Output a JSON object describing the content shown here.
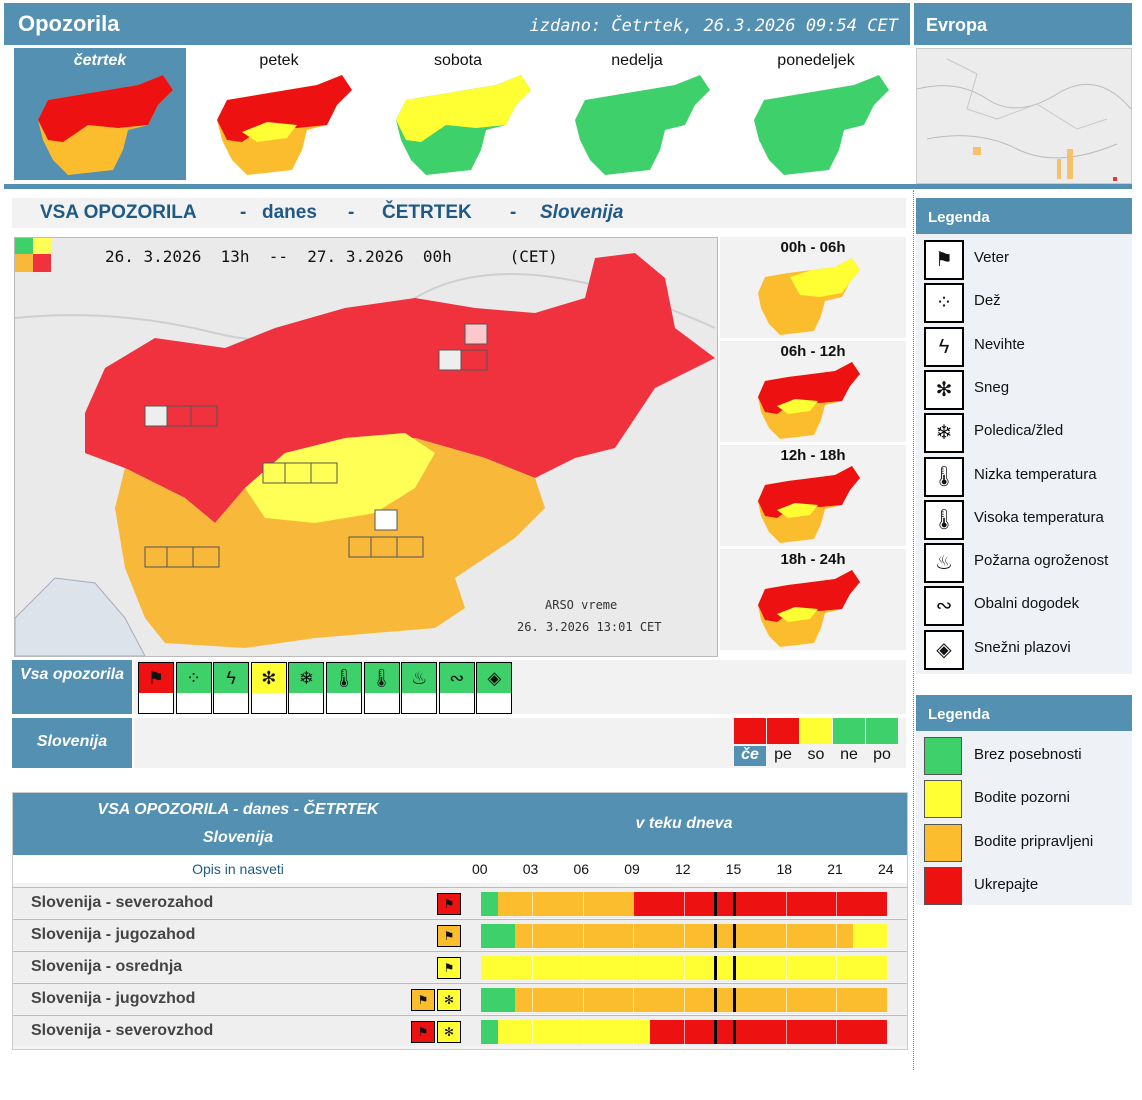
{
  "header": {
    "title": "Opozorila",
    "issued": "izdano: Četrtek, 26.3.2026 09:54 CET",
    "europe_title": "Evropa"
  },
  "days": [
    {
      "label": "četrtek",
      "selected": true
    },
    {
      "label": "petek",
      "selected": false
    },
    {
      "label": "sobota",
      "selected": false
    },
    {
      "label": "nedelja",
      "selected": false
    },
    {
      "label": "ponedeljek",
      "selected": false
    }
  ],
  "headline": {
    "part1": "VSA OPOZORILA",
    "dash": "-",
    "part2": "danes",
    "part3": "ČETRTEK",
    "part4": "Slovenija"
  },
  "map": {
    "period": "26. 3.2026  13h  --  27. 3.2026  00h      (CET)",
    "credit1": "ARSO vreme",
    "credit2": "26. 3.2026  13:01 CET"
  },
  "time_slots": [
    "00h - 06h",
    "06h - 12h",
    "12h - 18h",
    "18h - 24h"
  ],
  "all_warnings_label": "Vsa opozorila",
  "slovenia_label": "Slovenija",
  "icon_strip": [
    {
      "icon": "wind-icon",
      "glyph": "⚑",
      "level": "red"
    },
    {
      "icon": "rain-icon",
      "glyph": "⁘",
      "level": "green"
    },
    {
      "icon": "thunderstorm-icon",
      "glyph": "ϟ",
      "level": "green"
    },
    {
      "icon": "snow-icon",
      "glyph": "✻",
      "level": "yellow"
    },
    {
      "icon": "ice-icon",
      "glyph": "❄",
      "level": "green"
    },
    {
      "icon": "low-temperature-icon",
      "glyph": "🌡",
      "level": "green"
    },
    {
      "icon": "high-temperature-icon",
      "glyph": "🌡",
      "level": "green"
    },
    {
      "icon": "fire-danger-icon",
      "glyph": "♨",
      "level": "green"
    },
    {
      "icon": "coastal-event-icon",
      "glyph": "∾",
      "level": "green"
    },
    {
      "icon": "avalanche-icon",
      "glyph": "◈",
      "level": "green"
    }
  ],
  "day_strip": [
    {
      "label": "če",
      "color": "#ee1111",
      "selected": true
    },
    {
      "label": "pe",
      "color": "#ee1111",
      "selected": false
    },
    {
      "label": "so",
      "color": "#ffff33",
      "selected": false
    },
    {
      "label": "ne",
      "color": "#3ed06a",
      "selected": false
    },
    {
      "label": "po",
      "color": "#3ed06a",
      "selected": false
    }
  ],
  "table": {
    "title1": "VSA OPOZORILA - danes - ČETRTEK",
    "title2": "Slovenija",
    "right_title": "v teku dneva",
    "opis": "Opis in nasveti",
    "hours": [
      "00",
      "03",
      "06",
      "09",
      "12",
      "15",
      "18",
      "21",
      "24"
    ],
    "regions": [
      {
        "name": "Slovenija - severozahod",
        "badges": [
          {
            "icon": "wind-icon",
            "color": "#ee1111"
          }
        ],
        "segments": [
          [
            "green",
            0,
            1
          ],
          [
            "orange",
            1,
            9
          ],
          [
            "red",
            9,
            24
          ]
        ]
      },
      {
        "name": "Slovenija - jugozahod",
        "badges": [
          {
            "icon": "wind-icon",
            "color": "#fbbd2e"
          }
        ],
        "segments": [
          [
            "green",
            0,
            2
          ],
          [
            "orange",
            2,
            22
          ],
          [
            "yellow",
            22,
            24
          ]
        ]
      },
      {
        "name": "Slovenija - osrednja",
        "badges": [
          {
            "icon": "wind-icon",
            "color": "#ffff33"
          }
        ],
        "segments": [
          [
            "yellow",
            0,
            24
          ]
        ]
      },
      {
        "name": "Slovenija - jugovzhod",
        "badges": [
          {
            "icon": "wind-icon",
            "color": "#fbbd2e"
          },
          {
            "icon": "snow-icon",
            "color": "#ffff33"
          }
        ],
        "segments": [
          [
            "green",
            0,
            2
          ],
          [
            "orange",
            2,
            24
          ]
        ]
      },
      {
        "name": "Slovenija - severovzhod",
        "badges": [
          {
            "icon": "wind-icon",
            "color": "#ee1111"
          },
          {
            "icon": "snow-icon",
            "color": "#ffff33"
          }
        ],
        "segments": [
          [
            "green",
            0,
            1
          ],
          [
            "yellow",
            1,
            10
          ],
          [
            "red",
            10,
            24
          ]
        ]
      }
    ]
  },
  "legend1": {
    "title": "Legenda",
    "items": [
      {
        "icon": "wind-icon",
        "glyph": "⚑",
        "label": "Veter"
      },
      {
        "icon": "rain-icon",
        "glyph": "⁘",
        "label": "Dež"
      },
      {
        "icon": "thunderstorm-icon",
        "glyph": "ϟ",
        "label": "Nevihte"
      },
      {
        "icon": "snow-icon",
        "glyph": "✻",
        "label": "Sneg"
      },
      {
        "icon": "ice-icon",
        "glyph": "❄",
        "label": "Poledica/žled"
      },
      {
        "icon": "low-temperature-icon",
        "glyph": "🌡",
        "label": "Nizka temperatura"
      },
      {
        "icon": "high-temperature-icon",
        "glyph": "🌡",
        "label": "Visoka temperatura"
      },
      {
        "icon": "fire-danger-icon",
        "glyph": "♨",
        "label": "Požarna ogroženost"
      },
      {
        "icon": "coastal-event-icon",
        "glyph": "∾",
        "label": "Obalni dogodek"
      },
      {
        "icon": "avalanche-icon",
        "glyph": "◈",
        "label": "Snežni plazovi"
      }
    ]
  },
  "legend2": {
    "title": "Legenda",
    "items": [
      {
        "color": "#3ed06a",
        "label": "Brez posebnosti"
      },
      {
        "color": "#ffff33",
        "label": "Bodite pozorni"
      },
      {
        "color": "#fbbd2e",
        "label": "Bodite pripravljeni"
      },
      {
        "color": "#ee1111",
        "label": "Ukrepajte"
      }
    ]
  },
  "colors": {
    "green": "#3ed06a",
    "yellow": "#ffff33",
    "orange": "#fbbd2e",
    "red": "#ee1111",
    "accent": "#5390b1"
  }
}
